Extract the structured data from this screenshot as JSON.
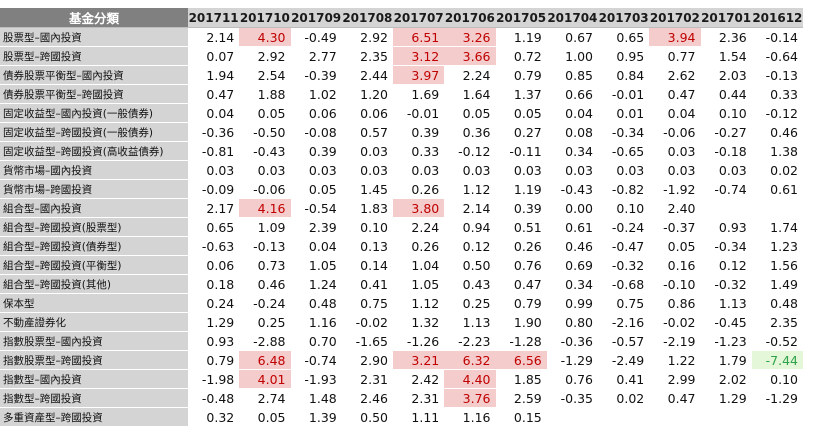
{
  "table": {
    "corner_label": "基金分類",
    "columns": [
      "201711",
      "201710",
      "201709",
      "201708",
      "201707",
      "201706",
      "201705",
      "201704",
      "201703",
      "201702",
      "201701",
      "201612"
    ],
    "rows": [
      {
        "name": "股票型–國內投資",
        "values": [
          "2.14",
          "4.30",
          "-0.49",
          "2.92",
          "6.51",
          "3.26",
          "1.19",
          "0.67",
          "0.65",
          "3.94",
          "2.36",
          "-0.14"
        ],
        "highlight_red": [
          1,
          4,
          5,
          9
        ],
        "highlight_green": []
      },
      {
        "name": "股票型–跨國投資",
        "values": [
          "0.07",
          "2.92",
          "2.77",
          "2.35",
          "3.12",
          "3.66",
          "0.72",
          "1.00",
          "0.95",
          "0.77",
          "1.54",
          "-0.64"
        ],
        "highlight_red": [
          4,
          5
        ],
        "highlight_green": []
      },
      {
        "name": "債券股票平衡型–國內投資",
        "values": [
          "1.94",
          "2.54",
          "-0.39",
          "2.44",
          "3.97",
          "2.24",
          "0.79",
          "0.85",
          "0.84",
          "2.62",
          "2.03",
          "-0.13"
        ],
        "highlight_red": [
          4
        ],
        "highlight_green": []
      },
      {
        "name": "債券股票平衡型–跨國投資",
        "values": [
          "0.47",
          "1.88",
          "1.02",
          "1.20",
          "1.69",
          "1.64",
          "1.37",
          "0.66",
          "-0.01",
          "0.47",
          "0.44",
          "0.33"
        ],
        "highlight_red": [],
        "highlight_green": []
      },
      {
        "name": "固定收益型–國內投資(一般債券)",
        "values": [
          "0.04",
          "0.05",
          "0.06",
          "0.06",
          "-0.01",
          "0.05",
          "0.05",
          "0.04",
          "0.01",
          "0.04",
          "0.10",
          "-0.12"
        ],
        "highlight_red": [],
        "highlight_green": []
      },
      {
        "name": "固定收益型–跨國投資(一般債券)",
        "values": [
          "-0.36",
          "-0.50",
          "-0.08",
          "0.57",
          "0.39",
          "0.36",
          "0.27",
          "0.08",
          "-0.34",
          "-0.06",
          "-0.27",
          "0.46"
        ],
        "highlight_red": [],
        "highlight_green": []
      },
      {
        "name": "固定收益型–跨國投資(高收益債券)",
        "values": [
          "-0.81",
          "-0.43",
          "0.39",
          "0.03",
          "0.33",
          "-0.12",
          "-0.11",
          "0.34",
          "-0.65",
          "0.03",
          "-0.18",
          "1.38"
        ],
        "highlight_red": [],
        "highlight_green": []
      },
      {
        "name": "貨幣市場–國內投資",
        "values": [
          "0.03",
          "0.03",
          "0.03",
          "0.03",
          "0.03",
          "0.03",
          "0.03",
          "0.03",
          "0.03",
          "0.03",
          "0.03",
          "0.02"
        ],
        "highlight_red": [],
        "highlight_green": []
      },
      {
        "name": "貨幣市場–跨國投資",
        "values": [
          "-0.09",
          "-0.06",
          "0.05",
          "1.45",
          "0.26",
          "1.12",
          "1.19",
          "-0.43",
          "-0.82",
          "-1.92",
          "-0.74",
          "0.61"
        ],
        "highlight_red": [],
        "highlight_green": []
      },
      {
        "name": "組合型–國內投資",
        "values": [
          "2.17",
          "4.16",
          "-0.54",
          "1.83",
          "3.80",
          "2.14",
          "0.39",
          "0.00",
          "0.10",
          "2.40",
          "",
          ""
        ],
        "highlight_red": [
          1,
          4
        ],
        "highlight_green": []
      },
      {
        "name": "組合型–跨國投資(股票型)",
        "values": [
          "0.65",
          "1.09",
          "2.39",
          "0.10",
          "2.24",
          "0.94",
          "0.51",
          "0.61",
          "-0.24",
          "-0.37",
          "0.93",
          "1.74"
        ],
        "highlight_red": [],
        "highlight_green": []
      },
      {
        "name": "組合型–跨國投資(債券型)",
        "values": [
          "-0.63",
          "-0.13",
          "0.04",
          "0.13",
          "0.26",
          "0.12",
          "0.26",
          "0.46",
          "-0.47",
          "0.05",
          "-0.34",
          "1.23"
        ],
        "highlight_red": [],
        "highlight_green": []
      },
      {
        "name": "組合型–跨國投資(平衡型)",
        "values": [
          "0.06",
          "0.73",
          "1.05",
          "0.14",
          "1.04",
          "0.50",
          "0.76",
          "0.69",
          "-0.32",
          "0.16",
          "0.12",
          "1.56"
        ],
        "highlight_red": [],
        "highlight_green": []
      },
      {
        "name": "組合型–跨國投資(其他)",
        "values": [
          "0.18",
          "0.46",
          "1.24",
          "0.41",
          "1.05",
          "0.43",
          "0.47",
          "0.34",
          "-0.68",
          "-0.10",
          "-0.32",
          "1.49"
        ],
        "highlight_red": [],
        "highlight_green": []
      },
      {
        "name": "保本型",
        "values": [
          "0.24",
          "-0.24",
          "0.48",
          "0.75",
          "1.12",
          "0.25",
          "0.79",
          "0.99",
          "0.75",
          "0.86",
          "1.13",
          "0.48"
        ],
        "highlight_red": [],
        "highlight_green": []
      },
      {
        "name": "不動產證券化",
        "values": [
          "1.29",
          "0.25",
          "1.16",
          "-0.02",
          "1.32",
          "1.13",
          "1.90",
          "0.80",
          "-2.16",
          "-0.02",
          "-0.45",
          "2.35"
        ],
        "highlight_red": [],
        "highlight_green": []
      },
      {
        "name": "指數股票型–國內投資",
        "values": [
          "0.93",
          "-2.88",
          "0.70",
          "-1.65",
          "-1.26",
          "-2.23",
          "-1.28",
          "-0.36",
          "-0.57",
          "-2.19",
          "-1.23",
          "-0.52"
        ],
        "highlight_red": [],
        "highlight_green": []
      },
      {
        "name": "指數股票型–跨國投資",
        "values": [
          "0.79",
          "6.48",
          "-0.74",
          "2.90",
          "3.21",
          "6.32",
          "6.56",
          "-1.29",
          "-2.49",
          "1.22",
          "1.79",
          "-7.44"
        ],
        "highlight_red": [
          1,
          4,
          5,
          6
        ],
        "highlight_green": [
          11
        ]
      },
      {
        "name": "指數型–國內投資",
        "values": [
          "-1.98",
          "4.01",
          "-1.93",
          "2.31",
          "2.42",
          "4.40",
          "1.85",
          "0.76",
          "0.41",
          "2.99",
          "2.02",
          "0.10"
        ],
        "highlight_red": [
          1,
          5
        ],
        "highlight_green": []
      },
      {
        "name": "指數型–跨國投資",
        "values": [
          "-0.48",
          "2.74",
          "1.48",
          "2.46",
          "2.31",
          "3.76",
          "2.59",
          "-0.35",
          "0.02",
          "0.47",
          "1.29",
          "-1.29"
        ],
        "highlight_red": [
          5
        ],
        "highlight_green": []
      },
      {
        "name": "多重資產型–跨國投資",
        "values": [
          "0.32",
          "0.05",
          "1.39",
          "0.50",
          "1.11",
          "1.16",
          "0.15",
          "",
          "",
          "",
          "",
          ""
        ],
        "highlight_red": [],
        "highlight_green": []
      }
    ]
  },
  "colors": {
    "header_bg": "#d4d4d4",
    "corner_bg": "#808080",
    "name_bg": "#d4d4d4",
    "highlight_red_bg": "#f4cccc",
    "highlight_red_text": "#c00000",
    "highlight_green_bg": "#e4f7d8",
    "highlight_green_text": "#2ea24a"
  }
}
